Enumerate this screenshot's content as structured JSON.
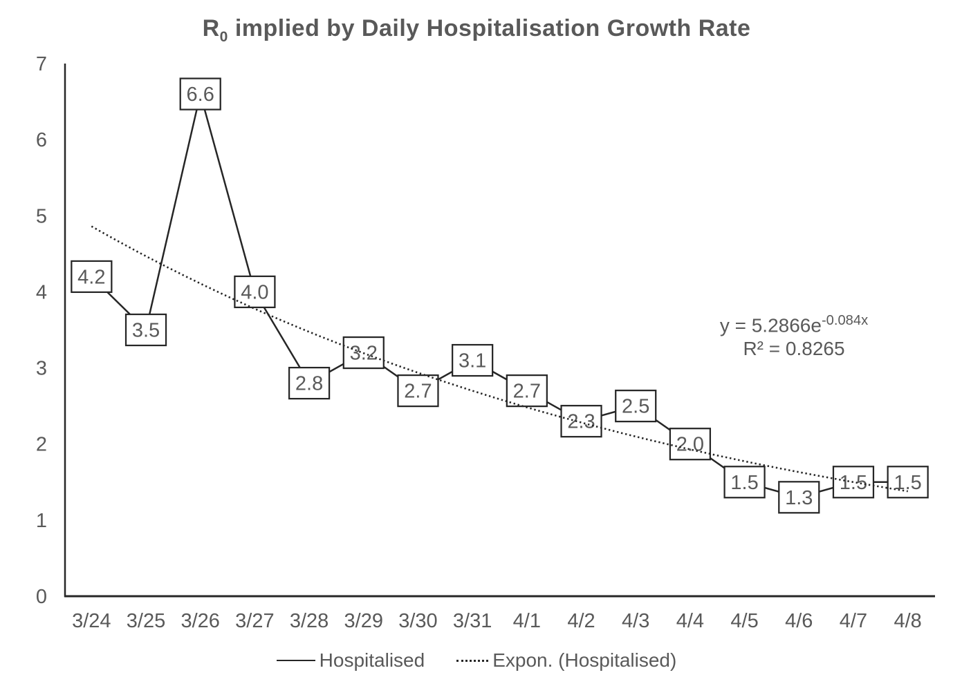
{
  "title": {
    "prefix": "R",
    "subscript": "0",
    "rest": " implied by Daily Hospitalisation Growth Rate"
  },
  "chart_data": {
    "type": "line",
    "title": "R0 implied by Daily Hospitalisation Growth Rate",
    "categories": [
      "3/24",
      "3/25",
      "3/26",
      "3/27",
      "3/28",
      "3/29",
      "3/30",
      "3/31",
      "4/1",
      "4/2",
      "4/3",
      "4/4",
      "4/5",
      "4/6",
      "4/7",
      "4/8"
    ],
    "series": [
      {
        "name": "Hospitalised",
        "values": [
          4.2,
          3.5,
          6.6,
          4.0,
          2.8,
          3.2,
          2.7,
          3.1,
          2.7,
          2.3,
          2.5,
          2.0,
          1.5,
          1.3,
          1.5,
          1.5
        ],
        "labels": [
          "4.2",
          "3.5",
          "6.6",
          "4.0",
          "2.8",
          "3.2",
          "2.7",
          "3.1",
          "2.7",
          "2.3",
          "2.5",
          "2.0",
          "1.5",
          "1.3",
          "1.5",
          "1.5"
        ]
      }
    ],
    "trendline": {
      "name": "Expon. (Hospitalised)",
      "type": "exponential",
      "a": 5.2866,
      "b": -0.084,
      "equation_base": "y = 5.2866e",
      "equation_exponent": "-0.084x",
      "r_squared": "R² = 0.8265"
    },
    "xlabel": "",
    "ylabel": "",
    "ylim": [
      0,
      7
    ],
    "yticks": [
      0,
      1,
      2,
      3,
      4,
      5,
      6,
      7
    ],
    "grid": false,
    "legend_position": "bottom"
  },
  "legend": {
    "items": [
      {
        "label": "Hospitalised",
        "line_style": "solid"
      },
      {
        "label": "Expon. (Hospitalised)",
        "line_style": "dotted"
      }
    ]
  },
  "colors": {
    "background": "#ffffff",
    "text": "#595959",
    "line": "#262626",
    "label_box_fill": "#ffffff",
    "label_box_border": "#262626"
  }
}
